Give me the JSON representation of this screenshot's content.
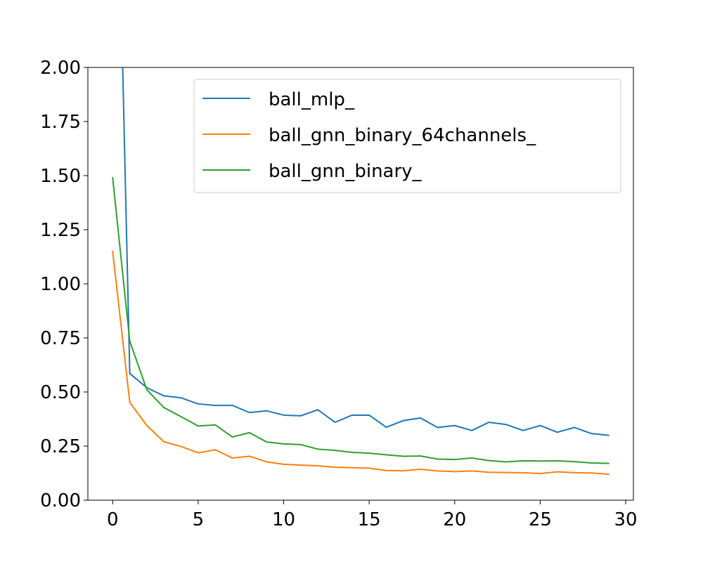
{
  "chart_data": {
    "type": "line",
    "title": "",
    "xlabel": "",
    "ylabel": "",
    "xlim": [
      -1.45,
      30.45
    ],
    "ylim": [
      0,
      2.0
    ],
    "x_ticks": [
      0,
      5,
      10,
      15,
      20,
      25,
      30
    ],
    "y_ticks": [
      0,
      0.25,
      0.5,
      0.75,
      1.0,
      1.25,
      1.5,
      1.75,
      2.0
    ],
    "x_tick_labels": [
      "0",
      "5",
      "10",
      "15",
      "20",
      "25",
      "30"
    ],
    "y_tick_labels": [
      "0.00",
      "0.25",
      "0.50",
      "0.75",
      "1.00",
      "1.25",
      "1.50",
      "1.75",
      "2.00"
    ],
    "grid": false,
    "legend_position": "top-right",
    "x": [
      0,
      1,
      2,
      3,
      4,
      5,
      6,
      7,
      8,
      9,
      10,
      11,
      12,
      13,
      14,
      15,
      16,
      17,
      18,
      19,
      20,
      21,
      22,
      23,
      24,
      25,
      26,
      27,
      28,
      29
    ],
    "series": [
      {
        "name": "ball_mlp_",
        "color": "#1f77b4",
        "values": [
          4.0,
          0.585,
          0.52,
          0.482,
          0.473,
          0.445,
          0.438,
          0.438,
          0.405,
          0.413,
          0.393,
          0.39,
          0.418,
          0.36,
          0.393,
          0.393,
          0.337,
          0.368,
          0.38,
          0.336,
          0.345,
          0.322,
          0.36,
          0.35,
          0.322,
          0.345,
          0.314,
          0.336,
          0.308,
          0.3
        ]
      },
      {
        "name": "ball_gnn_binary_64channels_",
        "color": "#ff7f0e",
        "values": [
          1.15,
          0.452,
          0.345,
          0.27,
          0.248,
          0.219,
          0.233,
          0.195,
          0.203,
          0.177,
          0.166,
          0.162,
          0.159,
          0.152,
          0.15,
          0.148,
          0.137,
          0.136,
          0.143,
          0.135,
          0.132,
          0.135,
          0.129,
          0.128,
          0.127,
          0.123,
          0.131,
          0.127,
          0.126,
          0.12
        ]
      },
      {
        "name": "ball_gnn_binary_",
        "color": "#2ca02c",
        "values": [
          1.49,
          0.735,
          0.51,
          0.428,
          0.386,
          0.343,
          0.348,
          0.292,
          0.312,
          0.269,
          0.26,
          0.257,
          0.236,
          0.23,
          0.221,
          0.217,
          0.21,
          0.203,
          0.204,
          0.19,
          0.188,
          0.195,
          0.183,
          0.177,
          0.182,
          0.181,
          0.182,
          0.178,
          0.172,
          0.17
        ]
      }
    ]
  }
}
